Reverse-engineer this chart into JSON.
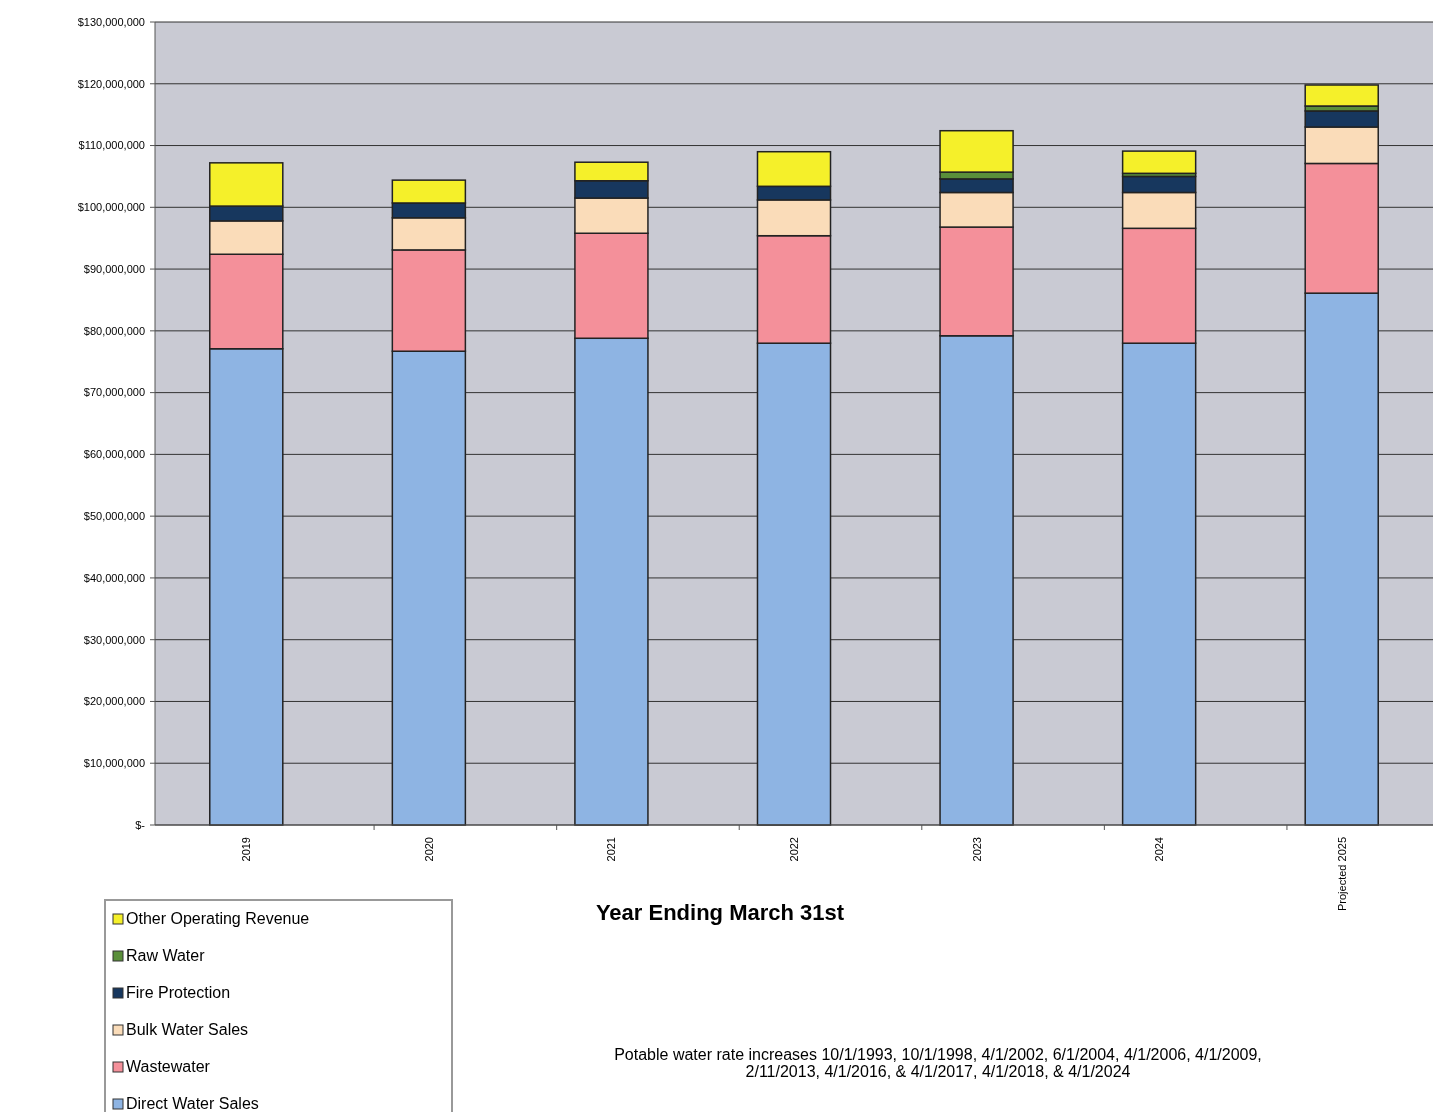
{
  "chart_data": {
    "type": "bar",
    "stacked": true,
    "xlabel": "Year Ending March 31st",
    "categories": [
      "2019",
      "2020",
      "2021",
      "2022",
      "2023",
      "2024",
      "Projected 2025"
    ],
    "series": [
      {
        "name": "Direct Water Sales",
        "color": "#8eb4e3",
        "values": [
          77100000,
          76700000,
          78800000,
          78000000,
          79200000,
          78000000,
          86100000
        ]
      },
      {
        "name": "Wastewater",
        "color": "#f4909a",
        "values": [
          15300000,
          16400000,
          17000000,
          17400000,
          17600000,
          18600000,
          21000000
        ]
      },
      {
        "name": "Bulk Water Sales",
        "color": "#fadcb9",
        "values": [
          5400000,
          5200000,
          5700000,
          5800000,
          5600000,
          5800000,
          5900000
        ]
      },
      {
        "name": "Fire Protection",
        "color": "#17375e",
        "values": [
          2400000,
          2400000,
          2800000,
          2200000,
          2200000,
          2600000,
          2600000
        ]
      },
      {
        "name": "Raw Water",
        "color": "#5a8f3a",
        "values": [
          0,
          0,
          0,
          0,
          1100000,
          500000,
          800000
        ]
      },
      {
        "name": "Other Operating Revenue",
        "color": "#f5f02a",
        "values": [
          7000000,
          3700000,
          3000000,
          5600000,
          6700000,
          3600000,
          3400000
        ]
      }
    ],
    "ylim": [
      0,
      130000000
    ],
    "yticks": [
      {
        "value": 0,
        "label": "$-"
      },
      {
        "value": 10000000,
        "label": "$10,000,000"
      },
      {
        "value": 20000000,
        "label": "$20,000,000"
      },
      {
        "value": 30000000,
        "label": "$30,000,000"
      },
      {
        "value": 40000000,
        "label": "$40,000,000"
      },
      {
        "value": 50000000,
        "label": "$50,000,000"
      },
      {
        "value": 60000000,
        "label": "$60,000,000"
      },
      {
        "value": 70000000,
        "label": "$70,000,000"
      },
      {
        "value": 80000000,
        "label": "$80,000,000"
      },
      {
        "value": 90000000,
        "label": "$90,000,000"
      },
      {
        "value": 100000000,
        "label": "$100,000,000"
      },
      {
        "value": 110000000,
        "label": "$110,000,000"
      },
      {
        "value": 120000000,
        "label": "$120,000,000"
      },
      {
        "value": 130000000,
        "label": "$130,000,000"
      }
    ],
    "grid": "y",
    "legend": "bottom left",
    "annotations": [
      "Potable water rate increases 10/1/1993, 10/1/1998, 4/1/2002, 6/1/2004, 4/1/2006, 4/1/2009, 2/11/2013, 4/1/2016, & 4/1/2017, 4/1/2018, & 4/1/2024"
    ]
  }
}
